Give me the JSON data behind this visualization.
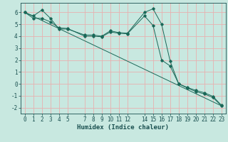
{
  "xlabel": "Humidex (Indice chaleur)",
  "background_color": "#c8e8e0",
  "grid_color": "#e8b0b0",
  "line_color": "#1a6858",
  "x_ticks": [
    0,
    1,
    2,
    3,
    4,
    5,
    7,
    8,
    9,
    10,
    11,
    12,
    14,
    15,
    16,
    17,
    18,
    19,
    20,
    21,
    22,
    23
  ],
  "ylim": [
    -2.5,
    6.8
  ],
  "xlim": [
    -0.5,
    23.5
  ],
  "series1_x": [
    0,
    1,
    2,
    3,
    4,
    5,
    7,
    8,
    9,
    10,
    11,
    12,
    14,
    15,
    16,
    17,
    18,
    19,
    20,
    21,
    22,
    23
  ],
  "series1_y": [
    6.0,
    5.7,
    6.2,
    5.5,
    4.6,
    4.6,
    4.1,
    4.1,
    4.0,
    4.45,
    4.3,
    4.25,
    6.0,
    6.3,
    5.0,
    1.9,
    0.0,
    -0.35,
    -0.65,
    -0.85,
    -1.15,
    -1.85
  ],
  "series2_x": [
    0,
    1,
    2,
    3,
    4,
    5,
    7,
    8,
    9,
    10,
    11,
    12,
    14,
    15,
    16,
    17,
    18,
    19,
    20,
    21,
    22,
    23
  ],
  "series2_y": [
    6.0,
    5.5,
    5.5,
    5.2,
    4.7,
    4.65,
    4.0,
    4.0,
    3.95,
    4.35,
    4.25,
    4.2,
    5.7,
    4.9,
    2.0,
    1.5,
    0.0,
    -0.3,
    -0.55,
    -0.75,
    -1.05,
    -1.8
  ],
  "series3_x": [
    0,
    23
  ],
  "series3_y": [
    6.0,
    -1.85
  ],
  "font_color": "#1a5050",
  "tick_fontsize": 5.5,
  "label_fontsize": 6.5,
  "yticks": [
    -2,
    -1,
    0,
    1,
    2,
    3,
    4,
    5,
    6
  ]
}
